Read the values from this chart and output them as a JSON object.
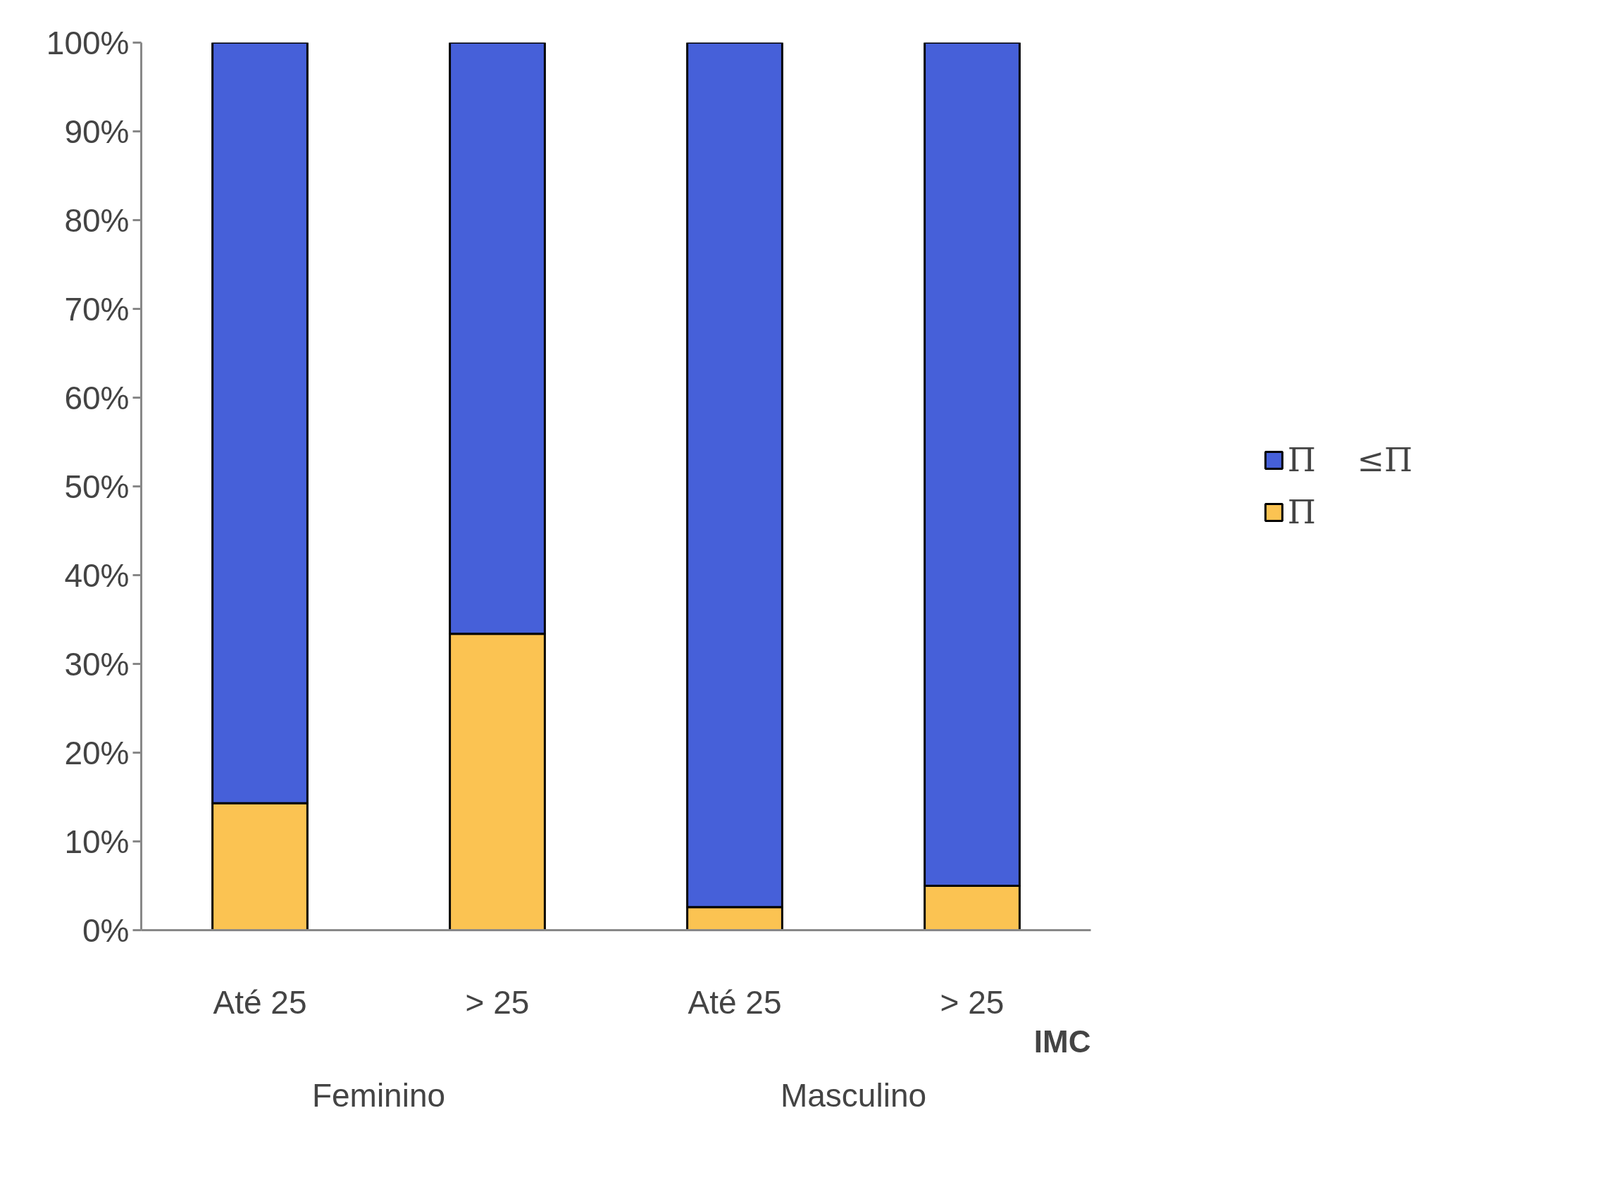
{
  "chart_data": {
    "type": "bar",
    "stacked": true,
    "categories": [
      "Até 25",
      "> 25",
      "Até 25",
      "> 25"
    ],
    "annotations": [
      "Feminino",
      "Masculino"
    ],
    "xlabel": "IMC",
    "series": [
      {
        "name": "Π",
        "color": "#fbc352",
        "values": [
          14.3,
          33.4,
          2.6,
          5.0
        ]
      },
      {
        "name": "Π    ≤Π",
        "color": "#4660d9",
        "values": [
          85.7,
          66.6,
          97.4,
          95.0
        ]
      }
    ],
    "ylim": [
      0,
      100
    ],
    "yticks": [
      {
        "value": 0,
        "label": "0%"
      },
      {
        "value": 10,
        "label": "10%"
      },
      {
        "value": 20,
        "label": "20%"
      },
      {
        "value": 30,
        "label": "30%"
      },
      {
        "value": 40,
        "label": "40%"
      },
      {
        "value": 50,
        "label": "50%"
      },
      {
        "value": 60,
        "label": "60%"
      },
      {
        "value": 70,
        "label": "70%"
      },
      {
        "value": 80,
        "label": "80%"
      },
      {
        "value": 90,
        "label": "90%"
      },
      {
        "value": 100,
        "label": "100%"
      }
    ],
    "grid": false,
    "legend": "right"
  }
}
